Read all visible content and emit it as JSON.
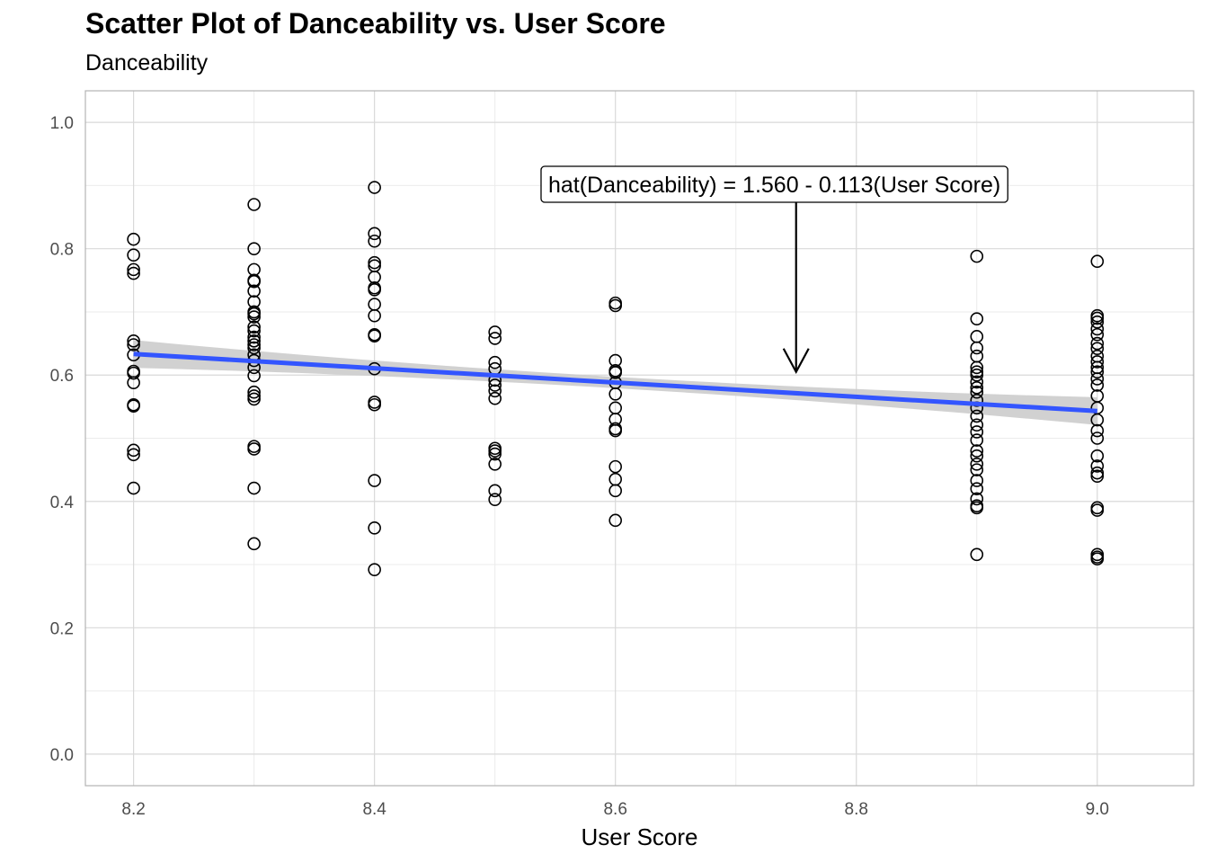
{
  "chart_data": {
    "type": "scatter",
    "title": "Scatter Plot of Danceability vs. User Score",
    "subtitle": "Danceability",
    "xlabel": "User Score",
    "ylabel": "",
    "xlim": [
      8.16,
      9.08
    ],
    "ylim": [
      -0.05,
      1.05
    ],
    "x_ticks": [
      "8.2",
      "8.4",
      "8.6",
      "8.8",
      "9.0"
    ],
    "y_ticks": [
      "0.0",
      "0.2",
      "0.4",
      "0.6",
      "0.8",
      "1.0"
    ],
    "grid": true,
    "colors": {
      "points": "#000000",
      "fit_line": "#3355ff",
      "ci_band": "#cccccc",
      "grid": "#d9d9d9",
      "panel_border": "#b3b3b3"
    },
    "points": [
      {
        "x": 8.2,
        "y": [
          0.815,
          0.79,
          0.767,
          0.761,
          0.654,
          0.648,
          0.632,
          0.606,
          0.603,
          0.588,
          0.553,
          0.551,
          0.481,
          0.474,
          0.421
        ]
      },
      {
        "x": 8.3,
        "y": [
          0.87,
          0.8,
          0.767,
          0.75,
          0.748,
          0.733,
          0.716,
          0.7,
          0.697,
          0.692,
          0.676,
          0.67,
          0.66,
          0.654,
          0.648,
          0.643,
          0.632,
          0.623,
          0.612,
          0.599,
          0.573,
          0.567,
          0.562,
          0.487,
          0.483,
          0.421,
          0.333
        ]
      },
      {
        "x": 8.4,
        "y": [
          0.897,
          0.824,
          0.812,
          0.778,
          0.773,
          0.755,
          0.738,
          0.735,
          0.712,
          0.694,
          0.664,
          0.662,
          0.61,
          0.557,
          0.553,
          0.433,
          0.358,
          0.292
        ]
      },
      {
        "x": 8.5,
        "y": [
          0.668,
          0.658,
          0.62,
          0.61,
          0.592,
          0.584,
          0.575,
          0.563,
          0.484,
          0.48,
          0.475,
          0.459,
          0.417,
          0.403
        ]
      },
      {
        "x": 8.6,
        "y": [
          0.714,
          0.71,
          0.623,
          0.607,
          0.604,
          0.588,
          0.57,
          0.548,
          0.53,
          0.515,
          0.512,
          0.455,
          0.435,
          0.417,
          0.37
        ]
      },
      {
        "x": 8.9,
        "y": [
          0.788,
          0.689,
          0.661,
          0.643,
          0.63,
          0.612,
          0.605,
          0.6,
          0.589,
          0.58,
          0.573,
          0.56,
          0.548,
          0.535,
          0.521,
          0.51,
          0.497,
          0.48,
          0.472,
          0.459,
          0.45,
          0.433,
          0.42,
          0.404,
          0.393,
          0.39,
          0.316
        ]
      },
      {
        "x": 9.0,
        "y": [
          0.78,
          0.694,
          0.69,
          0.684,
          0.673,
          0.664,
          0.65,
          0.642,
          0.63,
          0.621,
          0.612,
          0.605,
          0.594,
          0.584,
          0.567,
          0.548,
          0.529,
          0.512,
          0.5,
          0.472,
          0.456,
          0.445,
          0.44,
          0.39,
          0.386,
          0.316,
          0.312,
          0.309
        ]
      }
    ],
    "fit": {
      "intercept": 1.56,
      "slope": -0.113,
      "x_range": [
        8.2,
        9.0
      ],
      "ci_halfwidth_at_ends": 0.022,
      "ci_halfwidth_at_center": 0.009
    },
    "annotation": {
      "label": "hat(Danceability) = 1.560 - 0.113(User Score)",
      "label_x": 8.732,
      "label_y": 0.902,
      "arrow_to_x": 8.75,
      "arrow_to_y": 0.605
    }
  }
}
